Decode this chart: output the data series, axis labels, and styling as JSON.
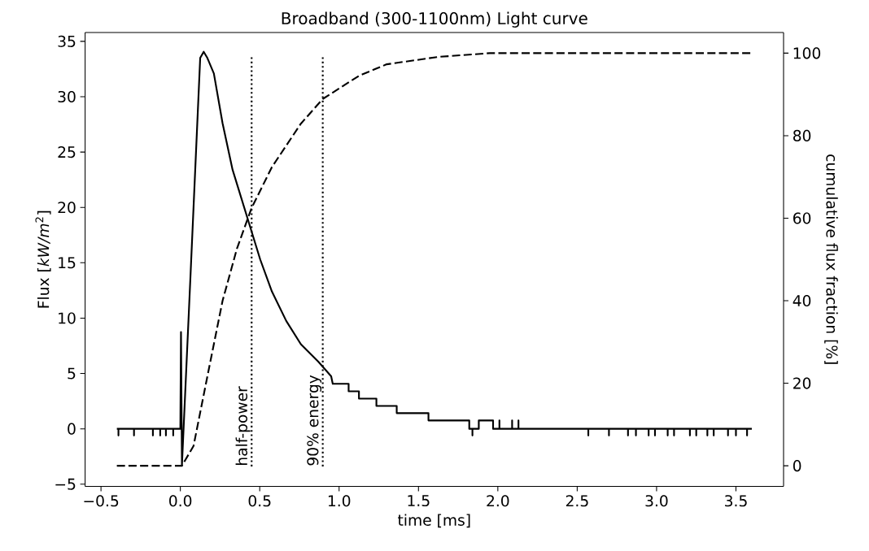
{
  "chart_data": {
    "type": "line",
    "title": "Broadband (300-1100nm) Light curve",
    "xlabel": "time [ms]",
    "ylabel": "Flux [*kW/m*$^{2}$]",
    "y2label": "cumulative flux fraction [%]",
    "xlim": [
      -0.6,
      3.8
    ],
    "ylim": [
      -5.2,
      35.8
    ],
    "y2lim": [
      -5,
      105
    ],
    "xticks": [
      {
        "value": -0.5,
        "label": "−0.5"
      },
      {
        "value": 0,
        "label": "0.0"
      },
      {
        "value": 0.5,
        "label": "0.5"
      },
      {
        "value": 1,
        "label": "1.0"
      },
      {
        "value": 1.5,
        "label": "1.5"
      },
      {
        "value": 2,
        "label": "2.0"
      },
      {
        "value": 2.5,
        "label": "2.5"
      },
      {
        "value": 3,
        "label": "3.0"
      },
      {
        "value": 3.5,
        "label": "3.5"
      }
    ],
    "yticks": [
      {
        "value": -5,
        "label": "−5"
      },
      0,
      5,
      10,
      15,
      20,
      25,
      30,
      35
    ],
    "y2ticks": [
      0,
      20,
      40,
      60,
      80,
      100
    ],
    "series": [
      {
        "color": "#000000",
        "line_style": "solid",
        "axis": "y",
        "x": [
          -0.4,
          -0.39,
          -0.39,
          -0.39,
          -0.292,
          -0.292,
          -0.292,
          -0.173,
          -0.173,
          -0.173,
          -0.127,
          -0.127,
          -0.127,
          -0.091,
          -0.091,
          -0.091,
          -0.045,
          -0.045,
          -0.045,
          0.0,
          0.004,
          0.01,
          0.065,
          0.125,
          0.147,
          0.17,
          0.211,
          0.266,
          0.329,
          0.43,
          0.503,
          0.577,
          0.667,
          0.759,
          0.869,
          0.95,
          0.96,
          1.06,
          1.06,
          1.125,
          1.125,
          1.235,
          1.235,
          1.363,
          1.363,
          1.563,
          1.563,
          1.82,
          1.82,
          1.84,
          1.84,
          1.84,
          1.88,
          1.88,
          1.97,
          1.97,
          2.01,
          2.01,
          2.01,
          2.09,
          2.09,
          2.09,
          2.13,
          2.13,
          2.13,
          2.57,
          2.57,
          2.57,
          2.7,
          2.7,
          2.7,
          2.82,
          2.82,
          2.82,
          2.87,
          2.87,
          2.87,
          2.95,
          2.95,
          2.95,
          2.99,
          2.99,
          2.99,
          3.07,
          3.07,
          3.07,
          3.11,
          3.11,
          3.11,
          3.21,
          3.21,
          3.21,
          3.25,
          3.25,
          3.25,
          3.32,
          3.32,
          3.32,
          3.36,
          3.36,
          3.36,
          3.45,
          3.45,
          3.45,
          3.5,
          3.5,
          3.5,
          3.57,
          3.57,
          3.57,
          3.6
        ],
        "values": [
          0,
          0,
          -0.6,
          0,
          0,
          -0.6,
          0,
          0,
          -0.6,
          0,
          0,
          -0.6,
          0,
          0,
          -0.6,
          0,
          0,
          -0.6,
          0,
          0,
          8.75,
          -3.26,
          14.2,
          33.5,
          34.06,
          33.5,
          32.1,
          27.6,
          23.4,
          18.7,
          15.3,
          12.4,
          9.75,
          7.65,
          6.07,
          4.75,
          4.07,
          4.07,
          3.39,
          3.39,
          2.73,
          2.73,
          2.07,
          2.07,
          1.42,
          1.42,
          0.76,
          0.76,
          0,
          0,
          -0.6,
          0,
          0,
          0.76,
          0.76,
          0,
          0,
          0.76,
          0,
          0,
          0.76,
          0,
          0,
          0.76,
          0,
          0,
          -0.6,
          0,
          0,
          -0.6,
          0,
          0,
          -0.6,
          0,
          0,
          -0.6,
          0,
          0,
          -0.6,
          0,
          0,
          -0.6,
          0,
          0,
          -0.6,
          0,
          0,
          -0.6,
          0,
          0,
          -0.6,
          0,
          0,
          -0.6,
          0,
          0,
          -0.6,
          0,
          0,
          -0.6,
          0,
          0,
          -0.6,
          0,
          0,
          -0.6,
          0,
          0,
          -0.6,
          0,
          0
        ]
      },
      {
        "color": "#000000",
        "line_style": "dashed",
        "axis": "y2",
        "x": [
          -0.4,
          0.01,
          0.083,
          0.174,
          0.266,
          0.357,
          0.449,
          0.577,
          0.759,
          0.897,
          1.125,
          1.3,
          1.628,
          1.95,
          3.6
        ],
        "values": [
          0,
          0,
          4.8,
          22.4,
          40,
          52.7,
          62.5,
          72.4,
          82.9,
          88.9,
          94.5,
          97.3,
          99.1,
          100,
          100
        ]
      }
    ],
    "ref_lines": [
      {
        "axis": "x",
        "value": 0.449,
        "label": "half-power",
        "color": "#000000",
        "line_style": "dotted"
      },
      {
        "axis": "x",
        "value": 0.897,
        "label": "90% energy",
        "color": "#000000",
        "line_style": "dotted"
      }
    ]
  }
}
